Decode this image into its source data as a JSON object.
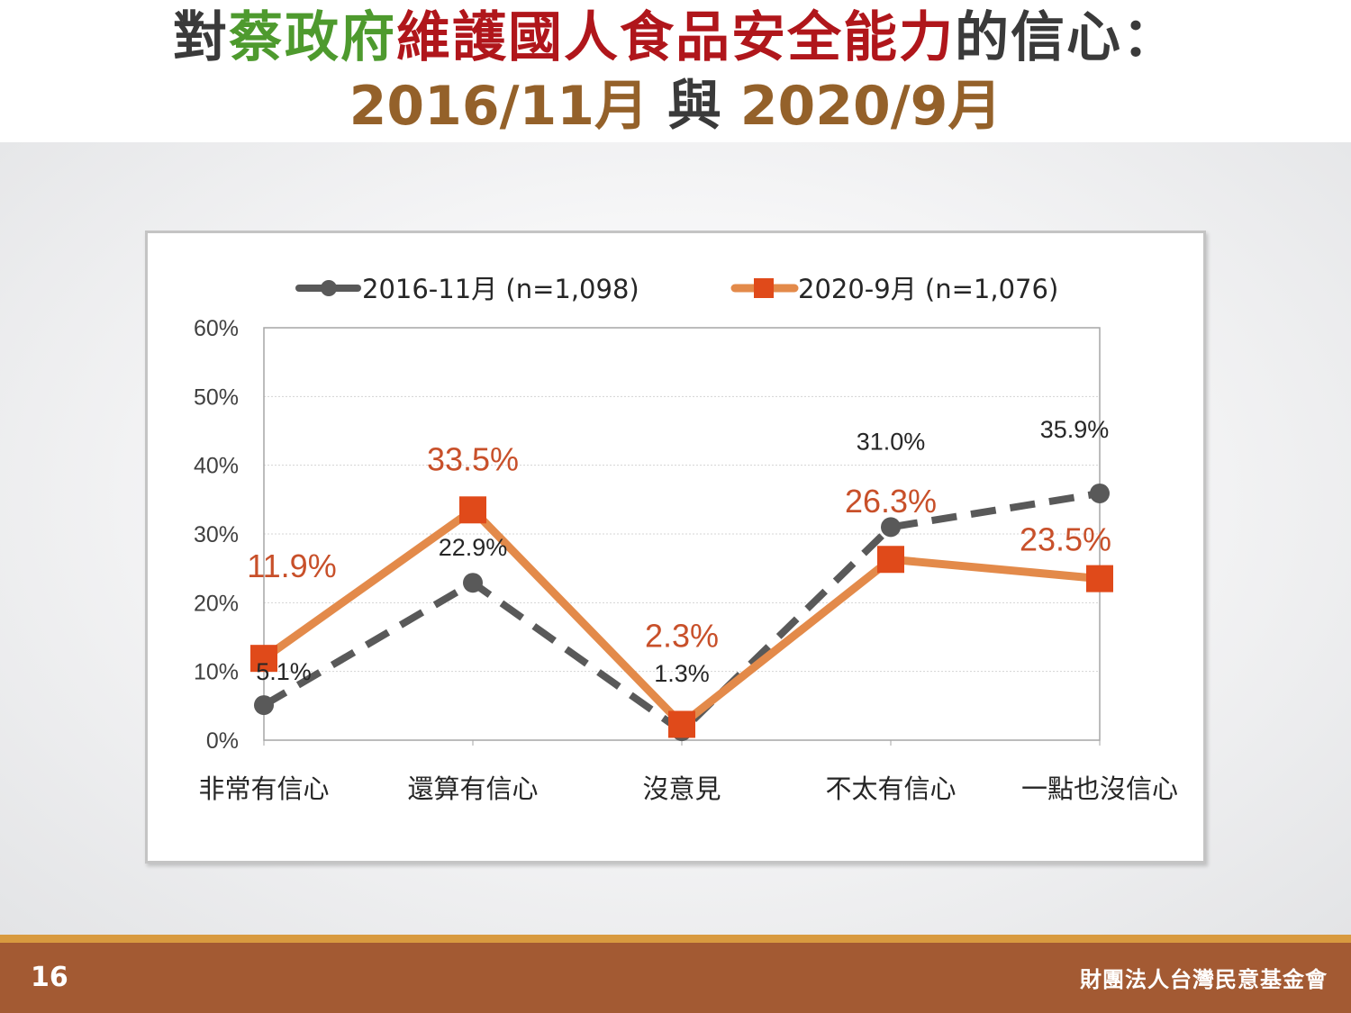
{
  "title": {
    "line1": [
      {
        "text": "對",
        "color": "#3a3a3a"
      },
      {
        "text": "蔡政府",
        "color": "#4e9a2e"
      },
      {
        "text": "維護國人食品安全能力",
        "color": "#b0161b"
      },
      {
        "text": "的信心：",
        "color": "#3a3a3a"
      }
    ],
    "line2_a": "2016/11月",
    "line2_link": "與",
    "line2_b": "2020/9月"
  },
  "chart_data": {
    "type": "line",
    "categories": [
      "非常有信心",
      "還算有信心",
      "沒意見",
      "不太有信心",
      "一點也沒信心"
    ],
    "ylim": [
      0,
      60
    ],
    "yticks": [
      "0%",
      "10%",
      "20%",
      "30%",
      "40%",
      "50%",
      "60%"
    ],
    "grid": true,
    "legend_position": "top",
    "series": [
      {
        "name": "2016-11月 (n=1,098)",
        "values": [
          5.1,
          22.9,
          1.3,
          31.0,
          35.9
        ],
        "labels": [
          "5.1%",
          "22.9%",
          "1.3%",
          "31.0%",
          "35.9%"
        ],
        "color": "#595959",
        "style": "dashed",
        "marker": "circle"
      },
      {
        "name": "2020-9月 (n=1,076)",
        "values": [
          11.9,
          33.5,
          2.3,
          26.3,
          23.5
        ],
        "labels": [
          "11.9%",
          "33.5%",
          "2.3%",
          "26.3%",
          "23.5%"
        ],
        "color": "#e38a4a",
        "marker_color": "#e04a1a",
        "label_color": "#c8502a",
        "style": "solid",
        "marker": "square"
      }
    ]
  },
  "footer": {
    "page_number": "16",
    "organization": "財團法人台灣民意基金會"
  }
}
